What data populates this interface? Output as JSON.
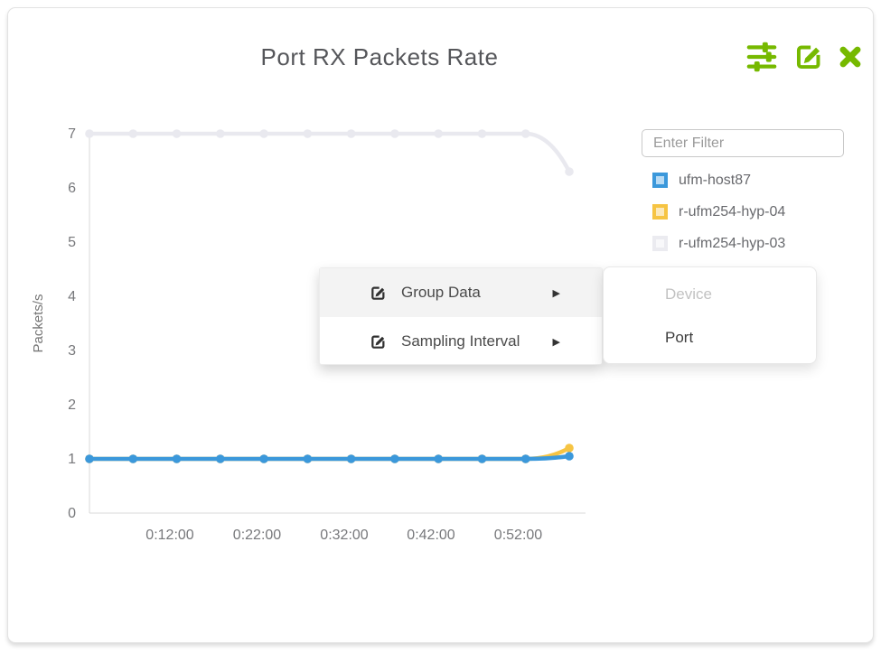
{
  "header": {
    "title": "Port RX Packets Rate",
    "accent_color": "#76b900"
  },
  "filter": {
    "placeholder": "Enter Filter"
  },
  "legend": {
    "items": [
      {
        "label": "ufm-host87",
        "border": "#3b98db",
        "fill": "#b9dbf4"
      },
      {
        "label": "r-ufm254-hyp-04",
        "border": "#f6c443",
        "fill": "#fbe9bd"
      },
      {
        "label": "r-ufm254-hyp-03",
        "border": "#ebebf0",
        "fill": "#f8f8fa"
      }
    ]
  },
  "context_menu": {
    "items": [
      {
        "label": "Group Data",
        "arrow": "▶"
      },
      {
        "label": "Sampling Interval",
        "arrow": "▶"
      }
    ]
  },
  "submenu": {
    "items": [
      {
        "label": "Device",
        "disabled": true
      },
      {
        "label": "Port",
        "disabled": false
      }
    ]
  },
  "chart_data": {
    "type": "line",
    "title": "Port RX Packets Rate",
    "xlabel": "",
    "ylabel": "Packets/s",
    "ylim": [
      0,
      7
    ],
    "yticks": [
      0,
      1,
      2,
      3,
      4,
      5,
      6,
      7
    ],
    "x_tick_labels": [
      "0:12:00",
      "0:22:00",
      "0:32:00",
      "0:42:00",
      "0:52:00"
    ],
    "x": [
      "0:03:00",
      "0:08:00",
      "0:13:00",
      "0:18:00",
      "0:23:00",
      "0:28:00",
      "0:33:00",
      "0:38:00",
      "0:43:00",
      "0:48:00",
      "0:53:00",
      "0:58:00"
    ],
    "series": [
      {
        "name": "r-ufm254-hyp-03",
        "color": "#e9e9ef",
        "values": [
          7,
          7,
          7,
          7,
          7,
          7,
          7,
          7,
          7,
          7,
          7,
          6.3
        ]
      },
      {
        "name": "r-ufm254-hyp-04",
        "color": "#f6c443",
        "values": [
          1,
          1,
          1,
          1,
          1,
          1,
          1,
          1,
          1,
          1,
          1,
          1.2
        ]
      },
      {
        "name": "ufm-host87",
        "color": "#3b98db",
        "values": [
          1,
          1,
          1,
          1,
          1,
          1,
          1,
          1,
          1,
          1,
          1,
          1.05
        ]
      }
    ],
    "grid": false,
    "legend_position": "right",
    "axis_color": "#d8d8d8",
    "tick_color": "#77787b"
  }
}
